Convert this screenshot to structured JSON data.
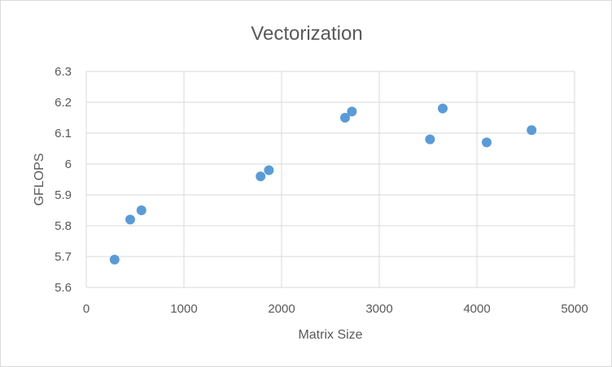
{
  "chart_data": {
    "type": "scatter",
    "title": "Vectorization",
    "xlabel": "Matrix Size",
    "ylabel": "GFLOPS",
    "xlim": [
      0,
      5000
    ],
    "ylim": [
      5.6,
      6.3
    ],
    "xticks": [
      "0",
      "1000",
      "2000",
      "3000",
      "4000",
      "5000"
    ],
    "yticks": [
      "5.6",
      "5.7",
      "5.8",
      "5.9",
      "6",
      "6.1",
      "6.2",
      "6.3"
    ],
    "grid": true,
    "marker_color": "#5b9bd5",
    "points": [
      {
        "x": 290,
        "y": 5.69
      },
      {
        "x": 450,
        "y": 5.82
      },
      {
        "x": 565,
        "y": 5.85
      },
      {
        "x": 1785,
        "y": 5.96
      },
      {
        "x": 1870,
        "y": 5.98
      },
      {
        "x": 2650,
        "y": 6.15
      },
      {
        "x": 2720,
        "y": 6.17
      },
      {
        "x": 3520,
        "y": 6.08
      },
      {
        "x": 3650,
        "y": 6.18
      },
      {
        "x": 4100,
        "y": 6.07
      },
      {
        "x": 4560,
        "y": 6.11
      }
    ]
  }
}
